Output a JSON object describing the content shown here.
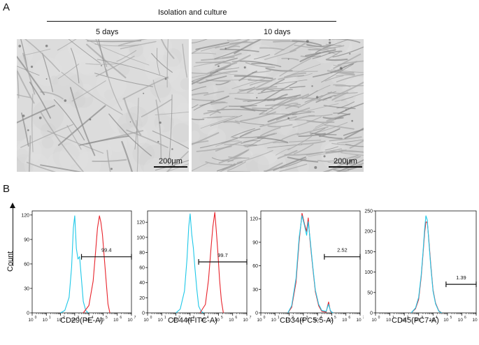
{
  "panels": {
    "a_label": "A",
    "b_label": "B"
  },
  "micrographs": {
    "header": "Isolation and culture",
    "left": {
      "title": "5 days",
      "scale": "200μm"
    },
    "right": {
      "title": "10 days",
      "scale": "200μm"
    }
  },
  "flow": {
    "y_label": "Count",
    "colors": {
      "isotype": "#1ec8e8",
      "marker": "#e8242c",
      "gate": "#111111"
    }
  },
  "chart_data": [
    {
      "type": "line",
      "xlabel": "CD29(PE-A)",
      "ylabel": "Count",
      "x_scale": "log",
      "xlim": [
        1,
        10000000
      ],
      "ylim": [
        0,
        125
      ],
      "yticks": [
        0,
        30,
        60,
        90,
        120
      ],
      "xticks": [
        1,
        10,
        100,
        1000,
        10000,
        100000,
        1000000,
        10000000
      ],
      "gate": {
        "from": 3000,
        "to": 10000000,
        "label": "99.4"
      },
      "series": [
        {
          "x": [
            100,
            200,
            400,
            600,
            800,
            1000,
            1300,
            1700,
            2200,
            3000,
            4000,
            6000,
            9000
          ],
          "y": [
            0,
            3,
            20,
            55,
            105,
            118,
            80,
            65,
            70,
            40,
            15,
            3,
            0
          ]
        },
        {
          "x": [
            4000,
            10000,
            20000,
            30000,
            40000,
            55000,
            70000,
            90000,
            120000,
            160000,
            220000,
            300000
          ],
          "y": [
            0,
            8,
            40,
            75,
            105,
            118,
            112,
            95,
            70,
            40,
            12,
            0
          ]
        }
      ]
    },
    {
      "type": "line",
      "xlabel": "CD44(FITC-A)",
      "ylabel": "Count",
      "x_scale": "log",
      "xlim": [
        1,
        10000000
      ],
      "ylim": [
        0,
        135
      ],
      "yticks": [
        0,
        20,
        40,
        60,
        80,
        100,
        120
      ],
      "xticks": [
        1,
        10,
        100,
        1000,
        10000,
        100000,
        1000000,
        10000000
      ],
      "gate": {
        "from": 4000,
        "to": 10000000,
        "label": "99.7"
      },
      "series": [
        {
          "x": [
            100,
            200,
            400,
            600,
            800,
            1000,
            1300,
            1700,
            2200,
            3000,
            4000,
            6000,
            9000
          ],
          "y": [
            0,
            5,
            30,
            70,
            115,
            130,
            105,
            85,
            60,
            30,
            10,
            2,
            0
          ]
        },
        {
          "x": [
            5000,
            12000,
            20000,
            30000,
            40000,
            55000,
            70000,
            90000,
            120000,
            160000,
            220000
          ],
          "y": [
            0,
            10,
            45,
            85,
            115,
            132,
            110,
            80,
            45,
            15,
            0
          ]
        }
      ]
    },
    {
      "type": "line",
      "xlabel": "CD34(PC5.5-A)",
      "ylabel": "Count",
      "x_scale": "log",
      "xlim": [
        1,
        10000000
      ],
      "ylim": [
        0,
        130
      ],
      "yticks": [
        0,
        30,
        60,
        90,
        120
      ],
      "xticks": [
        1,
        10,
        100,
        1000,
        10000,
        100000,
        1000000,
        10000000
      ],
      "gate": {
        "from": 30000,
        "to": 10000000,
        "label": "2.52"
      },
      "series": [
        {
          "x": [
            80,
            150,
            300,
            500,
            800,
            1200,
            1700,
            2200,
            3000,
            4500,
            7000,
            12000,
            20000,
            40000,
            60000,
            80000,
            100000,
            130000
          ],
          "y": [
            0,
            8,
            45,
            95,
            125,
            110,
            100,
            115,
            95,
            60,
            30,
            10,
            3,
            2,
            12,
            3,
            1,
            0
          ]
        },
        {
          "x": [
            80,
            150,
            300,
            500,
            800,
            1200,
            1700,
            2200,
            3000,
            4500,
            7000,
            12000,
            20000,
            40000,
            60000,
            80000,
            100000,
            130000
          ],
          "y": [
            0,
            6,
            40,
            90,
            128,
            112,
            105,
            120,
            92,
            58,
            28,
            8,
            2,
            1,
            15,
            2,
            1,
            0
          ]
        }
      ]
    },
    {
      "type": "line",
      "xlabel": "CD45(PC7-A)",
      "ylabel": "Count",
      "x_scale": "log",
      "xlim": [
        1,
        10000000
      ],
      "ylim": [
        0,
        250
      ],
      "yticks": [
        0,
        50,
        100,
        150,
        200,
        250
      ],
      "xticks": [
        1,
        10,
        100,
        1000,
        10000,
        100000,
        1000000,
        10000000
      ],
      "gate": {
        "from": 80000,
        "to": 10000000,
        "label": "1.39"
      },
      "series": [
        {
          "x": [
            300,
            600,
            1000,
            1500,
            2000,
            2600,
            3200,
            4000,
            5000,
            7000,
            10000,
            15000,
            25000,
            40000
          ],
          "y": [
            0,
            10,
            40,
            90,
            150,
            205,
            240,
            225,
            180,
            110,
            55,
            20,
            4,
            0
          ]
        },
        {
          "x": [
            300,
            600,
            1000,
            1500,
            2000,
            2600,
            3200,
            4000,
            5000,
            7000,
            10000,
            15000,
            25000,
            40000
          ],
          "y": [
            0,
            8,
            35,
            85,
            145,
            195,
            225,
            220,
            185,
            115,
            58,
            22,
            5,
            0
          ]
        }
      ]
    }
  ]
}
